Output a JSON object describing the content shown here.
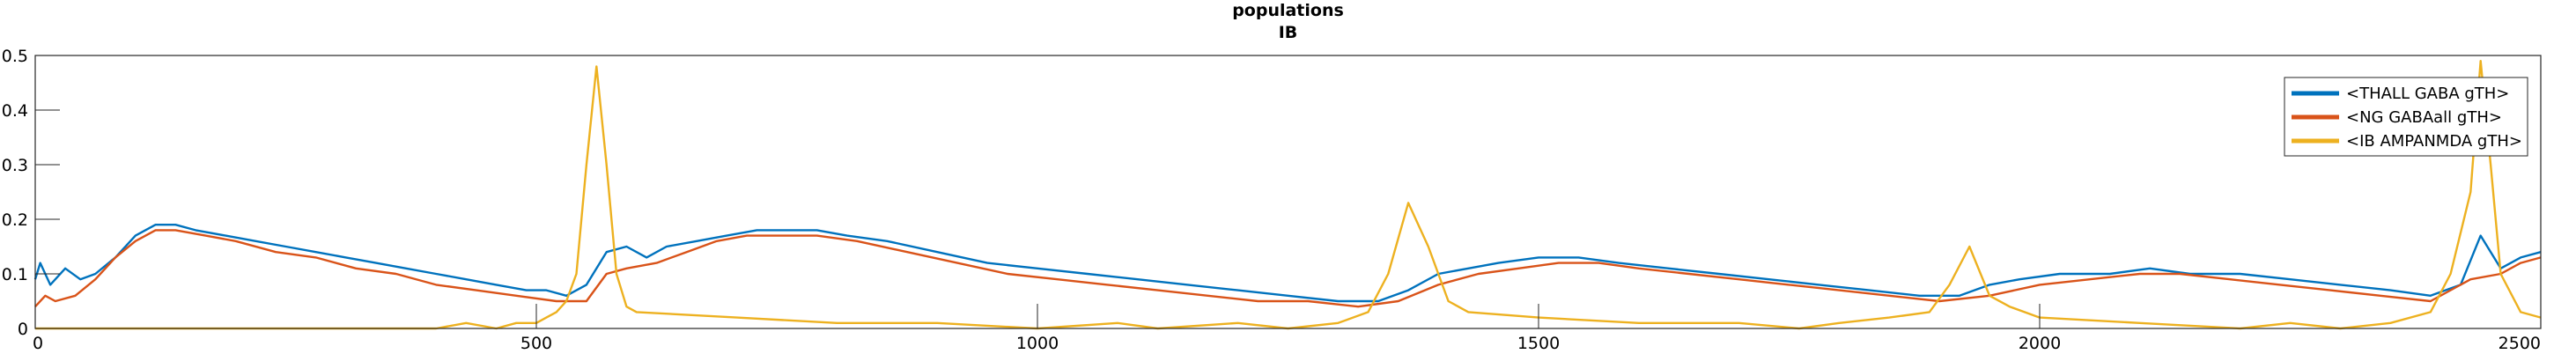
{
  "chart_data": {
    "type": "line",
    "title": "populations",
    "subtitle": "IB",
    "xlabel": "",
    "ylabel": "",
    "xlim": [
      0,
      2500
    ],
    "ylim": [
      0,
      0.5
    ],
    "x_ticks": [
      "0",
      "500",
      "1000",
      "1500",
      "2000",
      "2500"
    ],
    "y_ticks": [
      "0",
      "0.1",
      "0.2",
      "0.3",
      "0.4",
      "0.5"
    ],
    "grid": false,
    "legend_position": "top-right",
    "series": [
      {
        "name": "<THALL GABA gTH>",
        "color": "#0072BD",
        "points": [
          [
            0,
            0.09
          ],
          [
            5,
            0.12
          ],
          [
            15,
            0.08
          ],
          [
            30,
            0.11
          ],
          [
            45,
            0.09
          ],
          [
            60,
            0.1
          ],
          [
            80,
            0.13
          ],
          [
            100,
            0.17
          ],
          [
            120,
            0.19
          ],
          [
            140,
            0.19
          ],
          [
            160,
            0.18
          ],
          [
            190,
            0.17
          ],
          [
            220,
            0.16
          ],
          [
            250,
            0.15
          ],
          [
            280,
            0.14
          ],
          [
            310,
            0.13
          ],
          [
            340,
            0.12
          ],
          [
            370,
            0.11
          ],
          [
            400,
            0.1
          ],
          [
            430,
            0.09
          ],
          [
            460,
            0.08
          ],
          [
            490,
            0.07
          ],
          [
            510,
            0.07
          ],
          [
            530,
            0.06
          ],
          [
            550,
            0.08
          ],
          [
            570,
            0.14
          ],
          [
            590,
            0.15
          ],
          [
            610,
            0.13
          ],
          [
            630,
            0.15
          ],
          [
            660,
            0.16
          ],
          [
            690,
            0.17
          ],
          [
            720,
            0.18
          ],
          [
            750,
            0.18
          ],
          [
            780,
            0.18
          ],
          [
            810,
            0.17
          ],
          [
            850,
            0.16
          ],
          [
            900,
            0.14
          ],
          [
            950,
            0.12
          ],
          [
            1000,
            0.11
          ],
          [
            1050,
            0.1
          ],
          [
            1100,
            0.09
          ],
          [
            1150,
            0.08
          ],
          [
            1200,
            0.07
          ],
          [
            1250,
            0.06
          ],
          [
            1300,
            0.05
          ],
          [
            1340,
            0.05
          ],
          [
            1370,
            0.07
          ],
          [
            1400,
            0.1
          ],
          [
            1430,
            0.11
          ],
          [
            1460,
            0.12
          ],
          [
            1500,
            0.13
          ],
          [
            1540,
            0.13
          ],
          [
            1580,
            0.12
          ],
          [
            1630,
            0.11
          ],
          [
            1680,
            0.1
          ],
          [
            1730,
            0.09
          ],
          [
            1780,
            0.08
          ],
          [
            1830,
            0.07
          ],
          [
            1880,
            0.06
          ],
          [
            1920,
            0.06
          ],
          [
            1950,
            0.08
          ],
          [
            1980,
            0.09
          ],
          [
            2020,
            0.1
          ],
          [
            2070,
            0.1
          ],
          [
            2110,
            0.11
          ],
          [
            2150,
            0.1
          ],
          [
            2200,
            0.1
          ],
          [
            2250,
            0.09
          ],
          [
            2300,
            0.08
          ],
          [
            2350,
            0.07
          ],
          [
            2390,
            0.06
          ],
          [
            2420,
            0.08
          ],
          [
            2440,
            0.17
          ],
          [
            2460,
            0.11
          ],
          [
            2480,
            0.13
          ],
          [
            2500,
            0.14
          ]
        ]
      },
      {
        "name": "<NG GABAall gTH>",
        "color": "#D95319",
        "points": [
          [
            0,
            0.04
          ],
          [
            10,
            0.06
          ],
          [
            20,
            0.05
          ],
          [
            40,
            0.06
          ],
          [
            60,
            0.09
          ],
          [
            80,
            0.13
          ],
          [
            100,
            0.16
          ],
          [
            120,
            0.18
          ],
          [
            140,
            0.18
          ],
          [
            170,
            0.17
          ],
          [
            200,
            0.16
          ],
          [
            240,
            0.14
          ],
          [
            280,
            0.13
          ],
          [
            320,
            0.11
          ],
          [
            360,
            0.1
          ],
          [
            400,
            0.08
          ],
          [
            440,
            0.07
          ],
          [
            480,
            0.06
          ],
          [
            520,
            0.05
          ],
          [
            550,
            0.05
          ],
          [
            570,
            0.1
          ],
          [
            590,
            0.11
          ],
          [
            620,
            0.12
          ],
          [
            650,
            0.14
          ],
          [
            680,
            0.16
          ],
          [
            710,
            0.17
          ],
          [
            740,
            0.17
          ],
          [
            780,
            0.17
          ],
          [
            820,
            0.16
          ],
          [
            870,
            0.14
          ],
          [
            920,
            0.12
          ],
          [
            970,
            0.1
          ],
          [
            1020,
            0.09
          ],
          [
            1070,
            0.08
          ],
          [
            1120,
            0.07
          ],
          [
            1170,
            0.06
          ],
          [
            1220,
            0.05
          ],
          [
            1270,
            0.05
          ],
          [
            1320,
            0.04
          ],
          [
            1360,
            0.05
          ],
          [
            1400,
            0.08
          ],
          [
            1440,
            0.1
          ],
          [
            1480,
            0.11
          ],
          [
            1520,
            0.12
          ],
          [
            1560,
            0.12
          ],
          [
            1600,
            0.11
          ],
          [
            1650,
            0.1
          ],
          [
            1700,
            0.09
          ],
          [
            1750,
            0.08
          ],
          [
            1800,
            0.07
          ],
          [
            1850,
            0.06
          ],
          [
            1900,
            0.05
          ],
          [
            1950,
            0.06
          ],
          [
            2000,
            0.08
          ],
          [
            2050,
            0.09
          ],
          [
            2100,
            0.1
          ],
          [
            2140,
            0.1
          ],
          [
            2190,
            0.09
          ],
          [
            2240,
            0.08
          ],
          [
            2290,
            0.07
          ],
          [
            2340,
            0.06
          ],
          [
            2390,
            0.05
          ],
          [
            2430,
            0.09
          ],
          [
            2460,
            0.1
          ],
          [
            2480,
            0.12
          ],
          [
            2500,
            0.13
          ]
        ]
      },
      {
        "name": "<IB AMPANMDA gTH>",
        "color": "#EDB120",
        "points": [
          [
            0,
            0.0
          ],
          [
            400,
            0.0
          ],
          [
            430,
            0.01
          ],
          [
            460,
            0.0
          ],
          [
            480,
            0.01
          ],
          [
            500,
            0.01
          ],
          [
            510,
            0.02
          ],
          [
            520,
            0.03
          ],
          [
            530,
            0.05
          ],
          [
            540,
            0.1
          ],
          [
            550,
            0.3
          ],
          [
            560,
            0.48
          ],
          [
            570,
            0.3
          ],
          [
            580,
            0.1
          ],
          [
            590,
            0.04
          ],
          [
            600,
            0.03
          ],
          [
            700,
            0.02
          ],
          [
            800,
            0.01
          ],
          [
            900,
            0.01
          ],
          [
            1000,
            0.0
          ],
          [
            1080,
            0.01
          ],
          [
            1120,
            0.0
          ],
          [
            1200,
            0.01
          ],
          [
            1250,
            0.0
          ],
          [
            1300,
            0.01
          ],
          [
            1330,
            0.03
          ],
          [
            1350,
            0.1
          ],
          [
            1370,
            0.23
          ],
          [
            1390,
            0.15
          ],
          [
            1410,
            0.05
          ],
          [
            1430,
            0.03
          ],
          [
            1500,
            0.02
          ],
          [
            1600,
            0.01
          ],
          [
            1700,
            0.01
          ],
          [
            1760,
            0.0
          ],
          [
            1800,
            0.01
          ],
          [
            1850,
            0.02
          ],
          [
            1890,
            0.03
          ],
          [
            1910,
            0.08
          ],
          [
            1930,
            0.15
          ],
          [
            1950,
            0.06
          ],
          [
            1970,
            0.04
          ],
          [
            2000,
            0.02
          ],
          [
            2100,
            0.01
          ],
          [
            2200,
            0.0
          ],
          [
            2250,
            0.01
          ],
          [
            2300,
            0.0
          ],
          [
            2350,
            0.01
          ],
          [
            2390,
            0.03
          ],
          [
            2410,
            0.1
          ],
          [
            2430,
            0.25
          ],
          [
            2440,
            0.49
          ],
          [
            2450,
            0.3
          ],
          [
            2460,
            0.1
          ],
          [
            2480,
            0.03
          ],
          [
            2500,
            0.02
          ]
        ]
      }
    ]
  }
}
